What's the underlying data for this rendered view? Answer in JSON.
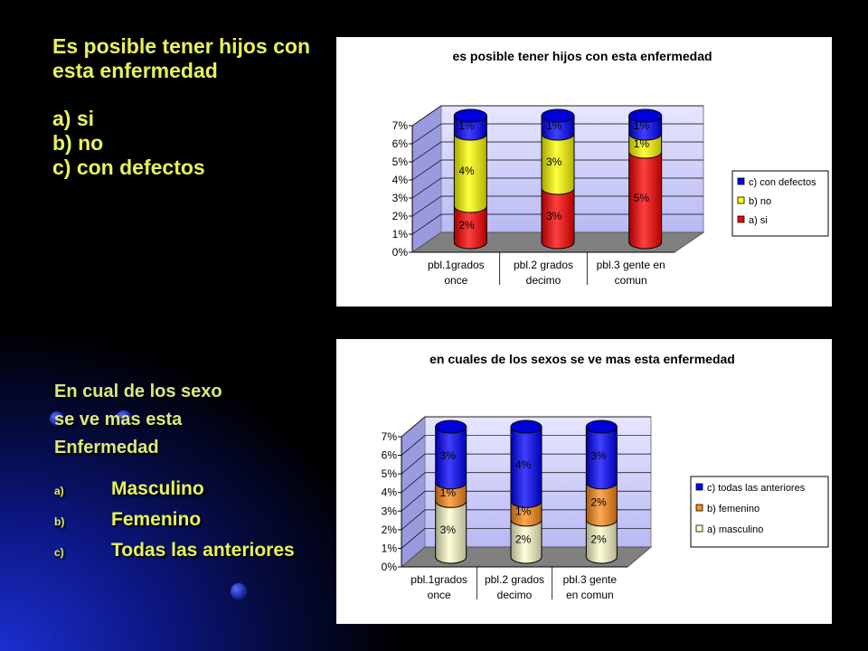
{
  "slide": {
    "title_lines": [
      "Es posible tener hijos con",
      "esta enfermedad"
    ],
    "options1": [
      "a) si",
      "b) no",
      "c) con defectos"
    ],
    "q2_lines": [
      "En cual de los sexo",
      "se ve mas esta",
      "Enfermedad"
    ],
    "options2": [
      {
        "mark": "a)",
        "text": "Masculino"
      },
      {
        "mark": "b)",
        "text": "Femenino"
      },
      {
        "mark": "c)",
        "text": "Todas las anteriores"
      }
    ],
    "accent_color": "#e8f25a"
  },
  "chart_data": [
    {
      "type": "bar",
      "stacked": true,
      "title": "es posible tener hijos con esta enfermedad",
      "categories": [
        [
          "pbl.1grados",
          "once"
        ],
        [
          "pbl.2 grados",
          "decimo"
        ],
        [
          "pbl.3 gente en",
          "comun"
        ]
      ],
      "yticks": [
        "0%",
        "1%",
        "2%",
        "3%",
        "4%",
        "5%",
        "6%",
        "7%"
      ],
      "ylim": [
        0,
        7
      ],
      "series": [
        {
          "name": "a) si",
          "color": "#ff0000",
          "values": [
            2,
            3,
            5
          ],
          "labels": [
            "2%",
            "3%",
            "5%"
          ]
        },
        {
          "name": "b) no",
          "color": "#ffff00",
          "values": [
            4,
            3,
            1
          ],
          "labels": [
            "4%",
            "3%",
            "1%"
          ]
        },
        {
          "name": "c) con defectos",
          "color": "#0000ff",
          "values": [
            1,
            1,
            1
          ],
          "labels": [
            "1%",
            "1%",
            "1%"
          ]
        }
      ],
      "legend_position": "right"
    },
    {
      "type": "bar",
      "stacked": true,
      "title": "en  cuales de los sexos se ve  mas esta enfermedad",
      "categories": [
        [
          "pbl.1grados",
          "once"
        ],
        [
          "pbl.2 grados",
          "decimo"
        ],
        [
          "pbl.3 gente",
          "en comun"
        ]
      ],
      "yticks": [
        "0%",
        "1%",
        "2%",
        "3%",
        "4%",
        "5%",
        "6%",
        "7%"
      ],
      "ylim": [
        0,
        7
      ],
      "series": [
        {
          "name": "a) masculino",
          "color": "#ffffcc",
          "values": [
            3,
            2,
            2
          ],
          "labels": [
            "3%",
            "2%",
            "2%"
          ]
        },
        {
          "name": "b) femenino",
          "color": "#ff8c1a",
          "values": [
            1,
            1,
            2
          ],
          "labels": [
            "1%",
            "1%",
            "2%"
          ]
        },
        {
          "name": "c) todas las anteriores",
          "color": "#0000ff",
          "values": [
            3,
            4,
            3
          ],
          "labels": [
            "3%",
            "4%",
            "3%"
          ]
        }
      ],
      "legend_position": "right"
    }
  ]
}
